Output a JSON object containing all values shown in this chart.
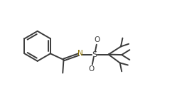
{
  "background_color": "#ffffff",
  "bond_color": "#3a3a3a",
  "bond_width": 1.4,
  "atom_colors": {
    "N": "#8B7000",
    "S": "#3a3a3a",
    "O": "#3a3a3a"
  },
  "figsize": [
    2.49,
    1.42
  ],
  "dpi": 100,
  "xlim": [
    0.0,
    10.0
  ],
  "ylim": [
    0.5,
    6.0
  ]
}
